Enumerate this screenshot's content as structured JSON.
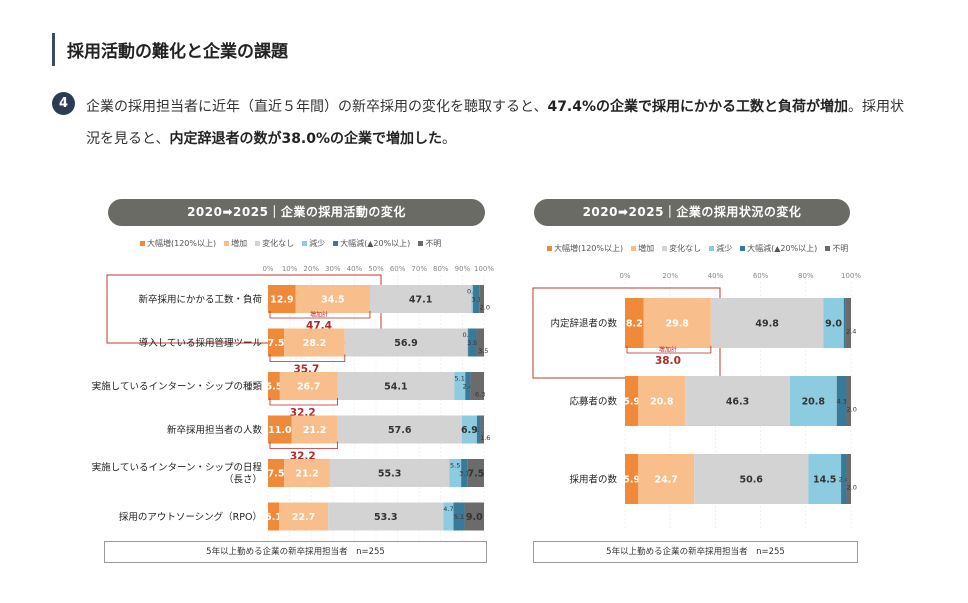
{
  "heading": "採用活動の難化と企業の課題",
  "badge": "4",
  "description": {
    "part1": "企業の採用担当者に近年（直近５年間）の新卒採用の変化を聴取すると、",
    "bold1": "47.4%の企業で採用にかかる工数と負荷が増加",
    "part2": "。採用状況を見ると、",
    "bold2": "内定辞退者の数が38.0%の企業で増加した",
    "part3": "。"
  },
  "legend": {
    "items": [
      "大幅増(120%以上)",
      "増加",
      "変化なし",
      "減少",
      "大幅減(▲20%以上)",
      "不明"
    ],
    "colors": [
      "#ef8a3a",
      "#f8bf8c",
      "#d3d3d3",
      "#8ccbe0",
      "#3a7a99",
      "#6b6b6b"
    ]
  },
  "sum_label": "増加計",
  "chart_data": [
    {
      "type": "bar",
      "stacked": true,
      "orientation": "horizontal",
      "title": "2020➡2025｜企業の採用活動の変化",
      "series_names": [
        "大幅増(120%以上)",
        "増加",
        "変化なし",
        "減少",
        "大幅減(▲20%以上)",
        "不明"
      ],
      "x_ticks": [
        "0%",
        "10%",
        "20%",
        "30%",
        "40%",
        "50%",
        "60%",
        "70%",
        "80%",
        "90%",
        "100%"
      ],
      "xlim": [
        0,
        100
      ],
      "categories": [
        {
          "lines": [
            "新卒採用にかかる工数・負荷"
          ],
          "values": [
            12.9,
            34.5,
            47.1,
            0.8,
            3.1,
            2.0
          ],
          "labels": [
            "12.9",
            "34.5",
            "47.1",
            "0.8",
            "3.1",
            "2.0"
          ],
          "sum": "47.4",
          "highlight": true
        },
        {
          "lines": [
            "導入している採用管理ツール"
          ],
          "values": [
            7.5,
            28.2,
            56.9,
            0.4,
            3.9,
            3.5
          ],
          "labels": [
            "7.5",
            "28.2",
            "56.9",
            "0.4",
            "3.9",
            "3.5"
          ],
          "sum": "35.7",
          "highlight": false
        },
        {
          "lines": [
            "実施しているインターン・シップの種類"
          ],
          "values": [
            5.5,
            26.7,
            54.1,
            5.1,
            2.4,
            6.3
          ],
          "labels": [
            "5.5",
            "26.7",
            "54.1",
            "5.1",
            "2.4",
            "6.3"
          ],
          "sum": "32.2",
          "highlight": false
        },
        {
          "lines": [
            "新卒採用担当者の人数"
          ],
          "values": [
            11.0,
            21.2,
            57.6,
            6.9,
            1.7,
            1.6
          ],
          "labels": [
            "11.0",
            "21.2",
            "57.6",
            "6.9",
            "1.7",
            "1.6"
          ],
          "sum": "32.2",
          "highlight": false
        },
        {
          "lines": [
            "実施しているインターン・シップの日程",
            "（長さ）"
          ],
          "values": [
            7.5,
            21.2,
            55.3,
            5.5,
            3.1,
            7.5
          ],
          "labels": [
            "7.5",
            "21.2",
            "55.3",
            "5.5",
            "3.1",
            "7.5"
          ],
          "sum": null,
          "highlight": false
        },
        {
          "lines": [
            "採用のアウトソーシング（RPO）"
          ],
          "values": [
            5.1,
            22.7,
            53.3,
            4.7,
            5.1,
            9.0
          ],
          "labels": [
            "5.1",
            "22.7",
            "53.3",
            "4.7",
            "5.1",
            "9.0"
          ],
          "sum": null,
          "highlight": false
        }
      ],
      "footnote": "5年以上勤める企業の新卒採用担当者　n=255"
    },
    {
      "type": "bar",
      "stacked": true,
      "orientation": "horizontal",
      "title": "2020➡2025｜企業の採用状況の変化",
      "series_names": [
        "大幅増(120%以上)",
        "増加",
        "変化なし",
        "減少",
        "大幅減(▲20%以上)",
        "不明"
      ],
      "x_ticks": [
        "0%",
        "20%",
        "40%",
        "60%",
        "80%",
        "100%"
      ],
      "xlim": [
        0,
        100
      ],
      "categories": [
        {
          "lines": [
            "内定辞退者の数"
          ],
          "values": [
            8.2,
            29.8,
            49.8,
            9.0,
            0.8,
            2.4
          ],
          "labels": [
            "8.2",
            "29.8",
            "49.8",
            "9.0",
            "",
            "2.4"
          ],
          "sum": "38.0",
          "highlight": true
        },
        {
          "lines": [
            "応募者の数"
          ],
          "values": [
            5.9,
            20.8,
            46.3,
            20.8,
            4.3,
            2.0
          ],
          "labels": [
            "5.9",
            "20.8",
            "46.3",
            "20.8",
            "4.3",
            "2.0"
          ],
          "sum": null,
          "highlight": false
        },
        {
          "lines": [
            "採用者の数"
          ],
          "values": [
            5.9,
            24.7,
            50.6,
            14.5,
            2.4,
            2.0
          ],
          "labels": [
            "5.9",
            "24.7",
            "50.6",
            "14.5",
            "2.4",
            "2.0"
          ],
          "sum": null,
          "highlight": false
        }
      ],
      "footnote": "5年以上勤める企業の新卒採用担当者　n=255"
    }
  ]
}
